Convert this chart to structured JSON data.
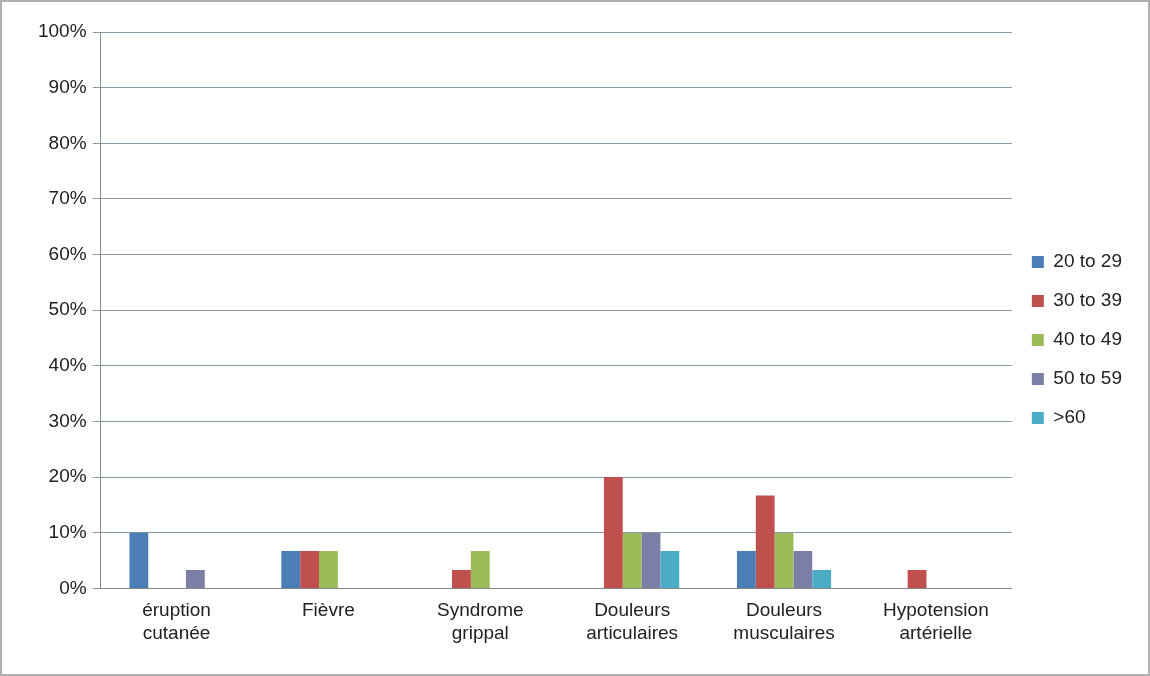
{
  "chart_data": {
    "type": "bar",
    "categories": [
      "éruption cutanée",
      "Fièvre",
      "Syndrome grippal",
      "Douleurs articulaires",
      "Douleurs musculaires",
      "Hypotension artérielle"
    ],
    "series": [
      {
        "name": "20 to 29",
        "color": "#4a7eb5",
        "values": [
          10,
          6.7,
          0,
          0,
          6.7,
          0
        ]
      },
      {
        "name": "30 to 39",
        "color": "#c0504d",
        "values": [
          0,
          6.7,
          3.3,
          20,
          16.7,
          3.3
        ]
      },
      {
        "name": "40 to 49",
        "color": "#9bbb59",
        "values": [
          0,
          6.7,
          6.7,
          10,
          10,
          0
        ]
      },
      {
        "name": "50 to 59",
        "color": "#7b7fa6",
        "values": [
          3.3,
          0,
          0,
          10,
          6.7,
          0
        ]
      },
      {
        "name": ">60",
        "color": "#4bacc6",
        "values": [
          0,
          0,
          0,
          6.7,
          3.3,
          0
        ]
      }
    ],
    "ylim": [
      0,
      100
    ],
    "yticks": [
      {
        "value": 0,
        "label": "0%"
      },
      {
        "value": 10,
        "label": "10%"
      },
      {
        "value": 20,
        "label": "20%"
      },
      {
        "value": 30,
        "label": "30%"
      },
      {
        "value": 40,
        "label": "40%"
      },
      {
        "value": 50,
        "label": "50%"
      },
      {
        "value": 60,
        "label": "60%"
      },
      {
        "value": 70,
        "label": "70%"
      },
      {
        "value": 80,
        "label": "80%"
      },
      {
        "value": 90,
        "label": "90%"
      },
      {
        "value": 100,
        "label": "100%"
      }
    ],
    "grid": "y",
    "legend": "right"
  }
}
